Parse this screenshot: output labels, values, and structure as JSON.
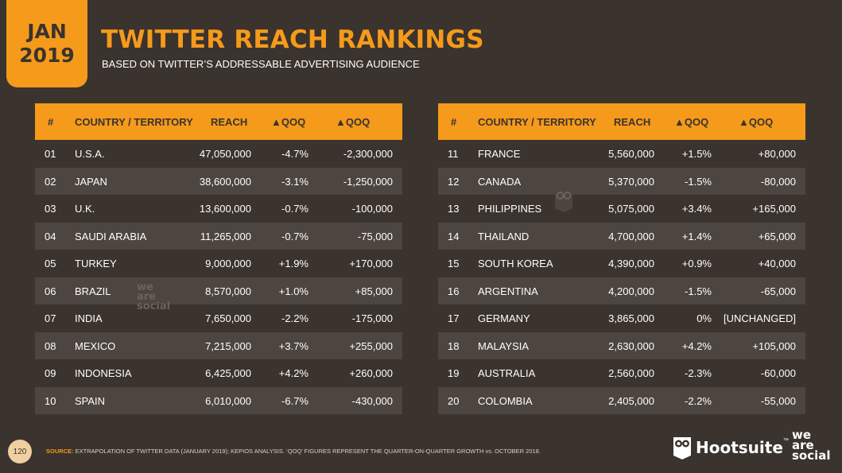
{
  "badge": {
    "month": "JAN",
    "year": "2019"
  },
  "title": "TWITTER REACH RANKINGS",
  "subtitle": "BASED ON TWITTER’S ADDRESSABLE ADVERTISING AUDIENCE",
  "columns": {
    "num": "#",
    "country": "COUNTRY / TERRITORY",
    "reach": "REACH",
    "pct": "▲QOQ",
    "abs": "▲QOQ"
  },
  "rows": [
    {
      "num": "01",
      "country": "U.S.A.",
      "reach": "47,050,000",
      "pct": "-4.7%",
      "abs": "-2,300,000"
    },
    {
      "num": "02",
      "country": "JAPAN",
      "reach": "38,600,000",
      "pct": "-3.1%",
      "abs": "-1,250,000"
    },
    {
      "num": "03",
      "country": "U.K.",
      "reach": "13,600,000",
      "pct": "-0.7%",
      "abs": "-100,000"
    },
    {
      "num": "04",
      "country": "SAUDI ARABIA",
      "reach": "11,265,000",
      "pct": "-0.7%",
      "abs": "-75,000"
    },
    {
      "num": "05",
      "country": "TURKEY",
      "reach": "9,000,000",
      "pct": "+1.9%",
      "abs": "+170,000"
    },
    {
      "num": "06",
      "country": "BRAZIL",
      "reach": "8,570,000",
      "pct": "+1.0%",
      "abs": "+85,000"
    },
    {
      "num": "07",
      "country": "INDIA",
      "reach": "7,650,000",
      "pct": "-2.2%",
      "abs": "-175,000"
    },
    {
      "num": "08",
      "country": "MEXICO",
      "reach": "7,215,000",
      "pct": "+3.7%",
      "abs": "+255,000"
    },
    {
      "num": "09",
      "country": "INDONESIA",
      "reach": "6,425,000",
      "pct": "+4.2%",
      "abs": "+260,000"
    },
    {
      "num": "10",
      "country": "SPAIN",
      "reach": "6,010,000",
      "pct": "-6.7%",
      "abs": "-430,000"
    },
    {
      "num": "11",
      "country": "FRANCE",
      "reach": "5,560,000",
      "pct": "+1.5%",
      "abs": "+80,000"
    },
    {
      "num": "12",
      "country": "CANADA",
      "reach": "5,370,000",
      "pct": "-1.5%",
      "abs": "-80,000"
    },
    {
      "num": "13",
      "country": "PHILIPPINES",
      "reach": "5,075,000",
      "pct": "+3.4%",
      "abs": "+165,000"
    },
    {
      "num": "14",
      "country": "THAILAND",
      "reach": "4,700,000",
      "pct": "+1.4%",
      "abs": "+65,000"
    },
    {
      "num": "15",
      "country": "SOUTH KOREA",
      "reach": "4,390,000",
      "pct": "+0.9%",
      "abs": "+40,000"
    },
    {
      "num": "16",
      "country": "ARGENTINA",
      "reach": "4,200,000",
      "pct": "-1.5%",
      "abs": "-65,000"
    },
    {
      "num": "17",
      "country": "GERMANY",
      "reach": "3,865,000",
      "pct": "0%",
      "abs": "[UNCHANGED]"
    },
    {
      "num": "18",
      "country": "MALAYSIA",
      "reach": "2,630,000",
      "pct": "+4.2%",
      "abs": "+105,000"
    },
    {
      "num": "19",
      "country": "AUSTRALIA",
      "reach": "2,560,000",
      "pct": "-2.3%",
      "abs": "-60,000"
    },
    {
      "num": "20",
      "country": "COLOMBIA",
      "reach": "2,405,000",
      "pct": "-2.2%",
      "abs": "-55,000"
    }
  ],
  "watermark": {
    "l1": "we",
    "l2": "are",
    "l3": "social"
  },
  "footer": {
    "page": "120",
    "source_label": "SOURCE:",
    "source_text": " EXTRAPOLATION OF TWITTER DATA (JANUARY 2019); KEPIOS ANALYSIS. ‘QOQ’ FIGURES REPRESENT THE QUARTER-ON-QUARTER GROWTH vs. OCTOBER 2018.",
    "hootsuite": "Hootsuite",
    "tm": "™",
    "was1": "we",
    "was2": "are",
    "was3": "social"
  },
  "colors": {
    "accent": "#f59a1b",
    "background": "#3a332e",
    "stripe": "#4c4540"
  }
}
